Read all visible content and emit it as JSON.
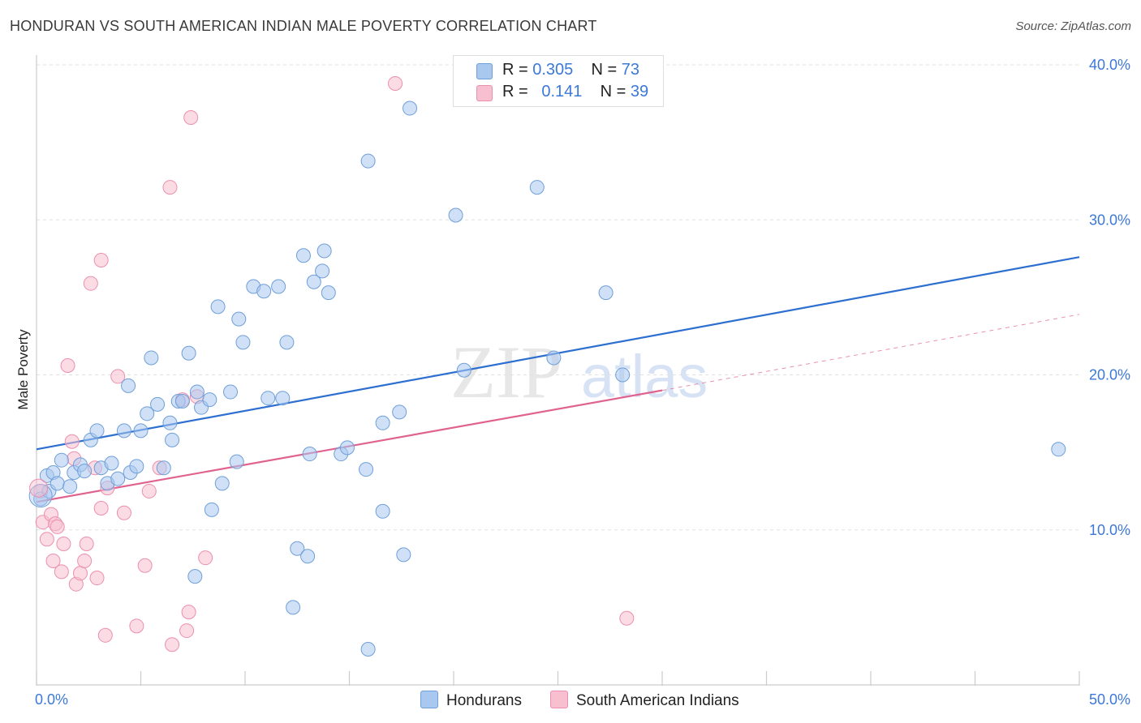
{
  "title": "HONDURAN VS SOUTH AMERICAN INDIAN MALE POVERTY CORRELATION CHART",
  "source": "Source: ZipAtlas.com",
  "watermark": {
    "zip": "ZIP",
    "atlas": "atlas"
  },
  "legend": {
    "series1": {
      "r_label": "R =",
      "r_value": "0.305",
      "n_label": "N =",
      "n_value": "73"
    },
    "series2": {
      "r_label": "R =",
      "r_value": "0.141",
      "n_label": "N =",
      "n_value": "39"
    }
  },
  "colors": {
    "blue_fill": "#a9c8f0",
    "blue_stroke": "#6f9fd8",
    "blue_line": "#2d6fd0",
    "pink_fill": "#f7bfd0",
    "pink_stroke": "#ec8fae",
    "pink_line": "#e0628f",
    "tick_text": "#3c78d8",
    "grid": "#e0e0e0"
  },
  "chart_data": {
    "type": "scatter",
    "xlabel": "",
    "ylabel": "Male Poverty",
    "xlim": [
      0,
      50
    ],
    "ylim": [
      0,
      40
    ],
    "x_tick_labels": [
      "0.0%",
      "50.0%"
    ],
    "y_tick_labels": [
      "10.0%",
      "20.0%",
      "30.0%",
      "40.0%"
    ],
    "y_tick_values": [
      10,
      20,
      30,
      40
    ],
    "grid": "horizontal dashed",
    "legend_position": "top-center",
    "series": [
      {
        "name": "Hondurans",
        "color": "#a9c8f0",
        "r": 0.305,
        "n": 73,
        "trend": {
          "x": [
            0,
            50
          ],
          "y": [
            15.2,
            27.6
          ],
          "style": "solid"
        },
        "points": [
          [
            0.2,
            12.0
          ],
          [
            0.5,
            13.5
          ],
          [
            0.6,
            12.5
          ],
          [
            0.8,
            13.7
          ],
          [
            1.0,
            13.0
          ],
          [
            1.2,
            14.5
          ],
          [
            1.6,
            12.8
          ],
          [
            1.8,
            13.7
          ],
          [
            2.1,
            14.2
          ],
          [
            2.3,
            13.8
          ],
          [
            2.6,
            15.8
          ],
          [
            2.9,
            16.4
          ],
          [
            3.1,
            14.0
          ],
          [
            3.4,
            13.0
          ],
          [
            3.6,
            14.3
          ],
          [
            3.9,
            13.3
          ],
          [
            4.2,
            16.4
          ],
          [
            4.4,
            19.3
          ],
          [
            4.5,
            13.7
          ],
          [
            4.8,
            14.1
          ],
          [
            5.0,
            16.4
          ],
          [
            5.3,
            17.5
          ],
          [
            5.5,
            21.1
          ],
          [
            5.8,
            18.1
          ],
          [
            6.1,
            14.0
          ],
          [
            6.4,
            16.9
          ],
          [
            6.5,
            15.8
          ],
          [
            6.8,
            18.3
          ],
          [
            7.0,
            18.3
          ],
          [
            7.3,
            21.4
          ],
          [
            7.6,
            7.0
          ],
          [
            7.7,
            18.9
          ],
          [
            7.9,
            17.9
          ],
          [
            8.3,
            18.4
          ],
          [
            8.4,
            11.3
          ],
          [
            8.7,
            24.4
          ],
          [
            8.9,
            13.0
          ],
          [
            9.3,
            18.9
          ],
          [
            9.6,
            14.4
          ],
          [
            9.7,
            23.6
          ],
          [
            9.9,
            22.1
          ],
          [
            10.4,
            25.7
          ],
          [
            10.9,
            25.4
          ],
          [
            11.1,
            18.5
          ],
          [
            11.6,
            25.7
          ],
          [
            11.8,
            18.5
          ],
          [
            12.0,
            22.1
          ],
          [
            12.3,
            5.0
          ],
          [
            12.5,
            8.8
          ],
          [
            12.8,
            27.7
          ],
          [
            13.0,
            8.3
          ],
          [
            13.1,
            14.9
          ],
          [
            13.3,
            26.0
          ],
          [
            13.7,
            26.7
          ],
          [
            13.8,
            28.0
          ],
          [
            14.0,
            25.3
          ],
          [
            14.6,
            14.9
          ],
          [
            14.9,
            15.3
          ],
          [
            15.8,
            13.9
          ],
          [
            15.9,
            2.3
          ],
          [
            15.9,
            33.8
          ],
          [
            16.6,
            16.9
          ],
          [
            16.6,
            11.2
          ],
          [
            17.4,
            17.6
          ],
          [
            17.6,
            8.4
          ],
          [
            17.9,
            37.2
          ],
          [
            20.1,
            30.3
          ],
          [
            20.5,
            20.3
          ],
          [
            24.0,
            32.1
          ],
          [
            24.8,
            21.1
          ],
          [
            27.3,
            25.3
          ],
          [
            28.1,
            20.0
          ],
          [
            49.0,
            15.2
          ]
        ]
      },
      {
        "name": "South American Indians",
        "color": "#f7bfd0",
        "r": 0.141,
        "n": 39,
        "trend": {
          "x": [
            0,
            30
          ],
          "y": [
            11.8,
            19.0
          ],
          "style": "solid",
          "extended_to": [
            50,
            23.9
          ]
        },
        "points": [
          [
            0.2,
            12.5
          ],
          [
            0.3,
            10.5
          ],
          [
            0.5,
            9.4
          ],
          [
            0.7,
            11.0
          ],
          [
            0.8,
            8.0
          ],
          [
            0.9,
            10.4
          ],
          [
            1.0,
            10.2
          ],
          [
            1.2,
            7.3
          ],
          [
            1.3,
            9.1
          ],
          [
            1.5,
            20.6
          ],
          [
            1.7,
            15.7
          ],
          [
            1.8,
            14.6
          ],
          [
            1.9,
            6.5
          ],
          [
            2.1,
            7.2
          ],
          [
            2.3,
            8.0
          ],
          [
            2.4,
            9.1
          ],
          [
            2.6,
            25.9
          ],
          [
            2.8,
            14.0
          ],
          [
            2.9,
            6.9
          ],
          [
            3.1,
            11.4
          ],
          [
            3.1,
            27.4
          ],
          [
            3.3,
            3.2
          ],
          [
            3.4,
            12.7
          ],
          [
            3.9,
            19.9
          ],
          [
            4.2,
            11.1
          ],
          [
            4.8,
            3.8
          ],
          [
            5.2,
            7.7
          ],
          [
            5.4,
            12.5
          ],
          [
            5.9,
            14.0
          ],
          [
            6.4,
            32.1
          ],
          [
            6.5,
            2.6
          ],
          [
            7.0,
            18.4
          ],
          [
            7.2,
            3.5
          ],
          [
            7.3,
            4.7
          ],
          [
            7.4,
            36.6
          ],
          [
            7.7,
            18.6
          ],
          [
            8.1,
            8.2
          ],
          [
            17.2,
            38.8
          ],
          [
            28.3,
            4.3
          ]
        ]
      }
    ]
  }
}
